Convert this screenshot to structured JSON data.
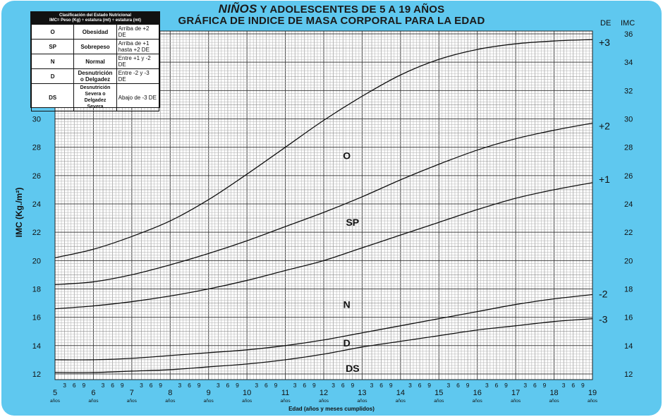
{
  "title": {
    "line1_emph": "NIÑOS",
    "line1_rest": " Y ADOLESCENTES DE 5 A 19 AÑOS",
    "line2": "GRÁFICA DE INDICE DE MASA CORPORAL PARA LA EDAD"
  },
  "legend": {
    "header_line1": "Clasificación del Estado Nutricional",
    "header_line2": "IMC= Peso (Kg) ÷ estatura (mt) ÷ estatura (mt)",
    "rows": [
      {
        "code": "O",
        "name": "Obesidad",
        "range": "Arriba de +2  DE"
      },
      {
        "code": "SP",
        "name": "Sobrepeso",
        "range": "Arriba de +1 hasta +2 DE"
      },
      {
        "code": "N",
        "name": "Normal",
        "range": "Entre +1 y -2 DE"
      },
      {
        "code": "D",
        "name": "Desnutrición o Delgadez",
        "range": "Entre  -2 y  -3 DE"
      },
      {
        "code": "DS",
        "name": "Desnutrición Severa o Delgadez Severa",
        "range": "Abajo de -3 DE"
      }
    ]
  },
  "axis_headers": {
    "de": "DE",
    "imc": "IMC"
  },
  "chart_data": {
    "type": "line",
    "xlabel": "Edad (años y meses cumplidos)",
    "ylabel": "IMC (Kg./m²)",
    "xlim": [
      5,
      19
    ],
    "ylim": [
      11.6,
      36.2
    ],
    "left_ticks": [
      12,
      14,
      16,
      18,
      20,
      22,
      24,
      26,
      28,
      30
    ],
    "right_ticks": [
      12,
      14,
      16,
      18,
      20,
      22,
      24,
      26,
      28,
      30,
      32,
      34,
      36
    ],
    "year_ticks": [
      5,
      6,
      7,
      8,
      9,
      10,
      11,
      12,
      13,
      14,
      15,
      16,
      17,
      18,
      19
    ],
    "year_unit": "años",
    "month_ticks": [
      "3",
      "6",
      "9"
    ],
    "grid": true,
    "series": [
      {
        "name": "+3",
        "x": [
          5,
          6,
          7,
          8,
          9,
          10,
          11,
          12,
          13,
          14,
          15,
          16,
          17,
          18,
          19
        ],
        "y": [
          20.2,
          20.8,
          21.7,
          22.8,
          24.3,
          26.1,
          28.0,
          29.9,
          31.6,
          33.1,
          34.2,
          34.9,
          35.3,
          35.5,
          35.6
        ]
      },
      {
        "name": "+2",
        "x": [
          5,
          6,
          7,
          8,
          9,
          10,
          11,
          12,
          13,
          14,
          15,
          16,
          17,
          18,
          19
        ],
        "y": [
          18.3,
          18.5,
          19.0,
          19.7,
          20.5,
          21.4,
          22.4,
          23.4,
          24.5,
          25.7,
          26.8,
          27.8,
          28.6,
          29.2,
          29.7
        ]
      },
      {
        "name": "+1",
        "x": [
          5,
          6,
          7,
          8,
          9,
          10,
          11,
          12,
          13,
          14,
          15,
          16,
          17,
          18,
          19
        ],
        "y": [
          16.6,
          16.8,
          17.1,
          17.5,
          18.0,
          18.6,
          19.3,
          20.0,
          20.9,
          21.8,
          22.7,
          23.6,
          24.4,
          25.0,
          25.5
        ]
      },
      {
        "name": "-2",
        "x": [
          5,
          6,
          7,
          8,
          9,
          10,
          11,
          12,
          13,
          14,
          15,
          16,
          17,
          18,
          19
        ],
        "y": [
          13.0,
          13.0,
          13.1,
          13.3,
          13.5,
          13.7,
          14.0,
          14.4,
          14.9,
          15.4,
          15.9,
          16.4,
          16.9,
          17.3,
          17.6
        ]
      },
      {
        "name": "-3",
        "x": [
          5,
          6,
          7,
          8,
          9,
          10,
          11,
          12,
          13,
          14,
          15,
          16,
          17,
          18,
          19
        ],
        "y": [
          12.1,
          12.1,
          12.2,
          12.3,
          12.5,
          12.7,
          13.0,
          13.4,
          13.9,
          14.3,
          14.7,
          15.1,
          15.4,
          15.7,
          15.9
        ]
      }
    ],
    "zone_labels": [
      {
        "text": "O",
        "x": 12.6,
        "y": 27.4
      },
      {
        "text": "SP",
        "x": 12.75,
        "y": 22.7
      },
      {
        "text": "N",
        "x": 12.6,
        "y": 16.9
      },
      {
        "text": "D",
        "x": 12.6,
        "y": 14.2
      },
      {
        "text": "DS",
        "x": 12.75,
        "y": 12.4
      }
    ]
  }
}
